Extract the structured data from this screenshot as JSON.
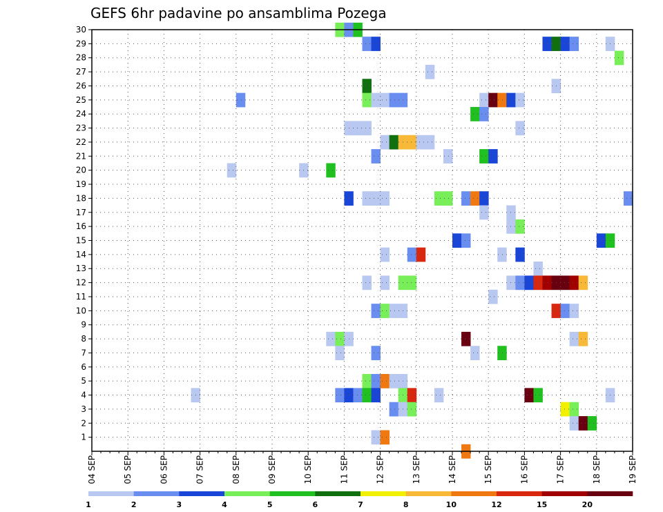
{
  "chart_data": {
    "type": "heatmap",
    "title": "GEFS 6hr padavine po ansamblima Pozega",
    "xlabel": "",
    "ylabel": "",
    "x_tick_labels": [
      "04 SEP",
      "05 SEP",
      "06 SEP",
      "07 SEP",
      "08 SEP",
      "09 SEP",
      "10 SEP",
      "11 SEP",
      "12 SEP",
      "13 SEP",
      "14 SEP",
      "15 SEP",
      "16 SEP",
      "17 SEP",
      "18 SEP",
      "19 SEP"
    ],
    "y_tick_labels": [
      "1",
      "2",
      "3",
      "4",
      "5",
      "6",
      "7",
      "8",
      "9",
      "10",
      "11",
      "12",
      "13",
      "14",
      "15",
      "16",
      "17",
      "18",
      "19",
      "20",
      "21",
      "22",
      "23",
      "24",
      "25",
      "26",
      "27",
      "28",
      "29",
      "30"
    ],
    "xlim_days": [
      0,
      15
    ],
    "ylim_members": [
      0,
      30
    ],
    "time_step_hours": 6,
    "grid": true,
    "legend_position": "bottom",
    "color_levels": [
      "1",
      "2",
      "3",
      "4",
      "5",
      "6",
      "7",
      "8",
      "10",
      "12",
      "15",
      "20"
    ],
    "color_bins": [
      "#b8c8f0",
      "#6a8ef0",
      "#1a46d8",
      "#78ee58",
      "#20c020",
      "#107010",
      "#f0f000",
      "#f8b838",
      "#f07810",
      "#d82810",
      "#a00000",
      "#680010"
    ],
    "cells": [
      {
        "member": 30,
        "day": 6.75,
        "bin": 3
      },
      {
        "member": 30,
        "day": 7.0,
        "bin": 1
      },
      {
        "member": 30,
        "day": 7.25,
        "bin": 4
      },
      {
        "member": 29,
        "day": 7.5,
        "bin": 1
      },
      {
        "member": 29,
        "day": 7.75,
        "bin": 2
      },
      {
        "member": 29,
        "day": 12.5,
        "bin": 2
      },
      {
        "member": 29,
        "day": 12.75,
        "bin": 5
      },
      {
        "member": 29,
        "day": 13.0,
        "bin": 2
      },
      {
        "member": 29,
        "day": 13.25,
        "bin": 1
      },
      {
        "member": 29,
        "day": 14.25,
        "bin": 0
      },
      {
        "member": 28,
        "day": 14.5,
        "bin": 3
      },
      {
        "member": 27,
        "day": 9.25,
        "bin": 0
      },
      {
        "member": 26,
        "day": 7.5,
        "bin": 5
      },
      {
        "member": 26,
        "day": 12.75,
        "bin": 0
      },
      {
        "member": 25,
        "day": 4.0,
        "bin": 1
      },
      {
        "member": 25,
        "day": 7.5,
        "bin": 3
      },
      {
        "member": 25,
        "day": 7.75,
        "bin": 0
      },
      {
        "member": 25,
        "day": 8.0,
        "bin": 0
      },
      {
        "member": 25,
        "day": 8.25,
        "bin": 1
      },
      {
        "member": 25,
        "day": 8.5,
        "bin": 1
      },
      {
        "member": 25,
        "day": 10.75,
        "bin": 0
      },
      {
        "member": 25,
        "day": 11.0,
        "bin": 11
      },
      {
        "member": 25,
        "day": 11.25,
        "bin": 8
      },
      {
        "member": 25,
        "day": 11.5,
        "bin": 2
      },
      {
        "member": 25,
        "day": 11.75,
        "bin": 0
      },
      {
        "member": 24,
        "day": 10.5,
        "bin": 4
      },
      {
        "member": 24,
        "day": 10.75,
        "bin": 1
      },
      {
        "member": 23,
        "day": 7.0,
        "bin": 0
      },
      {
        "member": 23,
        "day": 7.25,
        "bin": 0
      },
      {
        "member": 23,
        "day": 7.5,
        "bin": 0
      },
      {
        "member": 23,
        "day": 11.75,
        "bin": 0
      },
      {
        "member": 22,
        "day": 8.0,
        "bin": 0
      },
      {
        "member": 22,
        "day": 8.25,
        "bin": 5
      },
      {
        "member": 22,
        "day": 8.5,
        "bin": 7
      },
      {
        "member": 22,
        "day": 8.75,
        "bin": 7
      },
      {
        "member": 22,
        "day": 9.0,
        "bin": 0
      },
      {
        "member": 22,
        "day": 9.25,
        "bin": 0
      },
      {
        "member": 21,
        "day": 7.75,
        "bin": 1
      },
      {
        "member": 21,
        "day": 9.75,
        "bin": 0
      },
      {
        "member": 21,
        "day": 10.75,
        "bin": 4
      },
      {
        "member": 21,
        "day": 11.0,
        "bin": 2
      },
      {
        "member": 20,
        "day": 3.75,
        "bin": 0
      },
      {
        "member": 20,
        "day": 5.75,
        "bin": 0
      },
      {
        "member": 20,
        "day": 6.5,
        "bin": 4
      },
      {
        "member": 18,
        "day": 7.0,
        "bin": 2
      },
      {
        "member": 18,
        "day": 7.5,
        "bin": 0
      },
      {
        "member": 18,
        "day": 7.75,
        "bin": 0
      },
      {
        "member": 18,
        "day": 8.0,
        "bin": 0
      },
      {
        "member": 18,
        "day": 9.5,
        "bin": 3
      },
      {
        "member": 18,
        "day": 9.75,
        "bin": 3
      },
      {
        "member": 18,
        "day": 10.25,
        "bin": 1
      },
      {
        "member": 18,
        "day": 10.5,
        "bin": 8
      },
      {
        "member": 18,
        "day": 10.75,
        "bin": 2
      },
      {
        "member": 18,
        "day": 14.75,
        "bin": 1
      },
      {
        "member": 17,
        "day": 10.75,
        "bin": 0
      },
      {
        "member": 17,
        "day": 11.5,
        "bin": 0
      },
      {
        "member": 16,
        "day": 11.5,
        "bin": 0
      },
      {
        "member": 16,
        "day": 11.75,
        "bin": 3
      },
      {
        "member": 15,
        "day": 10.0,
        "bin": 2
      },
      {
        "member": 15,
        "day": 10.25,
        "bin": 1
      },
      {
        "member": 15,
        "day": 14.0,
        "bin": 2
      },
      {
        "member": 15,
        "day": 14.25,
        "bin": 4
      },
      {
        "member": 14,
        "day": 8.0,
        "bin": 0
      },
      {
        "member": 14,
        "day": 8.75,
        "bin": 1
      },
      {
        "member": 14,
        "day": 9.0,
        "bin": 9
      },
      {
        "member": 14,
        "day": 11.25,
        "bin": 0
      },
      {
        "member": 14,
        "day": 11.75,
        "bin": 2
      },
      {
        "member": 13,
        "day": 12.25,
        "bin": 0
      },
      {
        "member": 12,
        "day": 7.5,
        "bin": 0
      },
      {
        "member": 12,
        "day": 8.0,
        "bin": 0
      },
      {
        "member": 12,
        "day": 8.5,
        "bin": 3
      },
      {
        "member": 12,
        "day": 8.75,
        "bin": 3
      },
      {
        "member": 12,
        "day": 11.5,
        "bin": 0
      },
      {
        "member": 12,
        "day": 11.75,
        "bin": 1
      },
      {
        "member": 12,
        "day": 12.0,
        "bin": 2
      },
      {
        "member": 12,
        "day": 12.25,
        "bin": 9
      },
      {
        "member": 12,
        "day": 12.5,
        "bin": 10
      },
      {
        "member": 12,
        "day": 12.75,
        "bin": 11
      },
      {
        "member": 12,
        "day": 13.0,
        "bin": 11
      },
      {
        "member": 12,
        "day": 13.25,
        "bin": 10
      },
      {
        "member": 12,
        "day": 13.5,
        "bin": 7
      },
      {
        "member": 11,
        "day": 11.0,
        "bin": 0
      },
      {
        "member": 10,
        "day": 7.75,
        "bin": 1
      },
      {
        "member": 10,
        "day": 8.0,
        "bin": 3
      },
      {
        "member": 10,
        "day": 8.25,
        "bin": 0
      },
      {
        "member": 10,
        "day": 8.5,
        "bin": 0
      },
      {
        "member": 10,
        "day": 12.75,
        "bin": 9
      },
      {
        "member": 10,
        "day": 13.0,
        "bin": 1
      },
      {
        "member": 10,
        "day": 13.25,
        "bin": 0
      },
      {
        "member": 8,
        "day": 6.5,
        "bin": 0
      },
      {
        "member": 8,
        "day": 6.75,
        "bin": 3
      },
      {
        "member": 8,
        "day": 7.0,
        "bin": 0
      },
      {
        "member": 8,
        "day": 10.25,
        "bin": 11
      },
      {
        "member": 8,
        "day": 13.25,
        "bin": 0
      },
      {
        "member": 8,
        "day": 13.5,
        "bin": 7
      },
      {
        "member": 7,
        "day": 6.75,
        "bin": 0
      },
      {
        "member": 7,
        "day": 7.75,
        "bin": 1
      },
      {
        "member": 7,
        "day": 10.5,
        "bin": 0
      },
      {
        "member": 7,
        "day": 11.25,
        "bin": 4
      },
      {
        "member": 5,
        "day": 7.5,
        "bin": 3
      },
      {
        "member": 5,
        "day": 7.75,
        "bin": 1
      },
      {
        "member": 5,
        "day": 8.0,
        "bin": 8
      },
      {
        "member": 5,
        "day": 8.25,
        "bin": 0
      },
      {
        "member": 5,
        "day": 8.5,
        "bin": 0
      },
      {
        "member": 4,
        "day": 2.75,
        "bin": 0
      },
      {
        "member": 4,
        "day": 6.75,
        "bin": 1
      },
      {
        "member": 4,
        "day": 7.0,
        "bin": 2
      },
      {
        "member": 4,
        "day": 7.25,
        "bin": 1
      },
      {
        "member": 4,
        "day": 7.5,
        "bin": 4
      },
      {
        "member": 4,
        "day": 7.75,
        "bin": 2
      },
      {
        "member": 4,
        "day": 8.5,
        "bin": 3
      },
      {
        "member": 4,
        "day": 8.75,
        "bin": 9
      },
      {
        "member": 4,
        "day": 9.5,
        "bin": 0
      },
      {
        "member": 4,
        "day": 12.0,
        "bin": 11
      },
      {
        "member": 4,
        "day": 12.25,
        "bin": 4
      },
      {
        "member": 4,
        "day": 14.25,
        "bin": 0
      },
      {
        "member": 3,
        "day": 8.25,
        "bin": 1
      },
      {
        "member": 3,
        "day": 8.5,
        "bin": 0
      },
      {
        "member": 3,
        "day": 8.75,
        "bin": 3
      },
      {
        "member": 3,
        "day": 13.0,
        "bin": 6
      },
      {
        "member": 3,
        "day": 13.25,
        "bin": 3
      },
      {
        "member": 2,
        "day": 13.25,
        "bin": 0
      },
      {
        "member": 2,
        "day": 13.5,
        "bin": 11
      },
      {
        "member": 2,
        "day": 13.75,
        "bin": 4
      },
      {
        "member": 1,
        "day": 7.75,
        "bin": 0
      },
      {
        "member": 1,
        "day": 8.0,
        "bin": 8
      },
      {
        "member": 0,
        "day": 10.25,
        "bin": 8
      }
    ]
  }
}
